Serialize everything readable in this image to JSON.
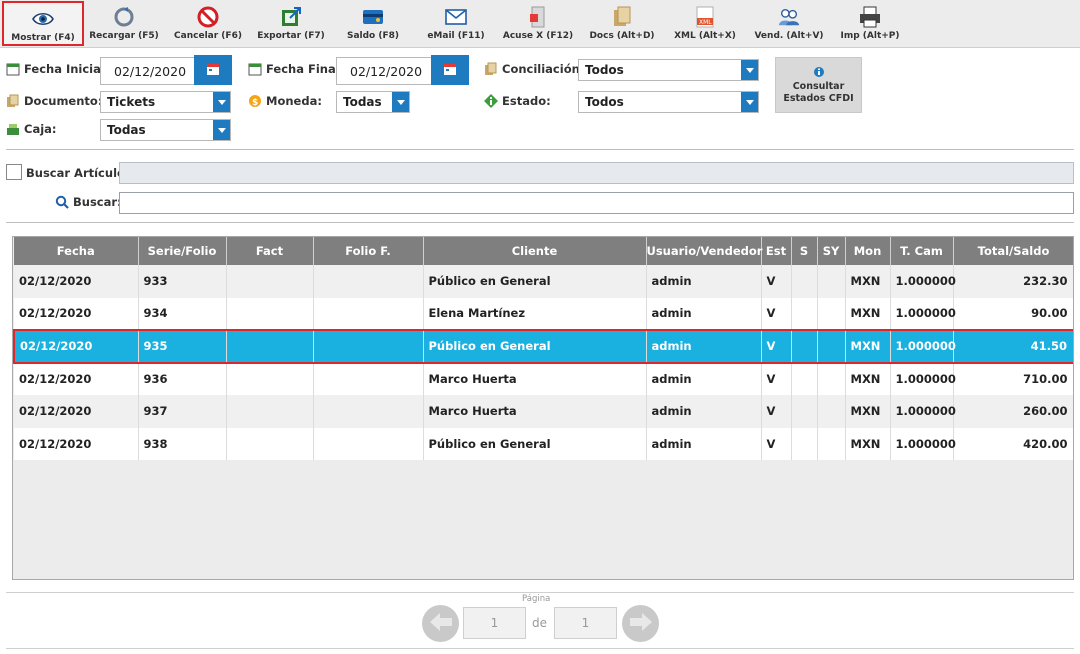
{
  "toolbar": {
    "buttons": [
      {
        "label": "Mostrar (F4)",
        "icon": "eye-icon"
      },
      {
        "label": "Recargar (F5)",
        "icon": "reload-icon"
      },
      {
        "label": "Cancelar (F6)",
        "icon": "cancel-icon"
      },
      {
        "label": "Exportar (F7)",
        "icon": "export-icon"
      },
      {
        "label": "Saldo (F8)",
        "icon": "card-icon"
      },
      {
        "label": "eMail (F11)",
        "icon": "envelope-icon"
      },
      {
        "label": "Acuse X (F12)",
        "icon": "receipt-icon"
      },
      {
        "label": "Docs (Alt+D)",
        "icon": "docs-icon"
      },
      {
        "label": "XML (Alt+X)",
        "icon": "xml-icon"
      },
      {
        "label": "Vend. (Alt+V)",
        "icon": "users-icon"
      },
      {
        "label": "Imp (Alt+P)",
        "icon": "printer-icon"
      }
    ]
  },
  "filters": {
    "fecha_inicial_label": "Fecha Inicial:",
    "fecha_inicial_value": "02/12/2020",
    "fecha_final_label": "Fecha Final:",
    "fecha_final_value": "02/12/2020",
    "conciliacion_label": "Conciliación:",
    "conciliacion_value": "Todos",
    "documento_label": "Documento:",
    "documento_value": "Tickets",
    "moneda_label": "Moneda:",
    "moneda_value": "Todas",
    "estado_label": "Estado:",
    "estado_value": "Todos",
    "caja_label": "Caja:",
    "caja_value": "Todas",
    "cfdi_button_line1": "Consultar",
    "cfdi_button_line2": "Estados CFDI"
  },
  "search": {
    "buscar_articulo_label": "Buscar Artículo:",
    "buscar_label": "Buscar:"
  },
  "table": {
    "headers": [
      "Fecha",
      "Serie/Folio",
      "Fact",
      "Folio F.",
      "Cliente",
      "Usuario/Vendedor",
      "Est",
      "S",
      "SY",
      "Mon",
      "T. Cam",
      "Total/Saldo"
    ],
    "rows": [
      [
        "02/12/2020",
        "933",
        "",
        "",
        "Público en General",
        "admin",
        "V",
        "",
        "",
        "MXN",
        "1.000000",
        "232.30"
      ],
      [
        "02/12/2020",
        "934",
        "",
        "",
        "Elena Martínez",
        "admin",
        "V",
        "",
        "",
        "MXN",
        "1.000000",
        "90.00"
      ],
      [
        "02/12/2020",
        "935",
        "",
        "",
        "Público en General",
        "admin",
        "V",
        "",
        "",
        "MXN",
        "1.000000",
        "41.50"
      ],
      [
        "02/12/2020",
        "936",
        "",
        "",
        "Marco Huerta",
        "admin",
        "V",
        "",
        "",
        "MXN",
        "1.000000",
        "710.00"
      ],
      [
        "02/12/2020",
        "937",
        "",
        "",
        "Marco Huerta",
        "admin",
        "V",
        "",
        "",
        "MXN",
        "1.000000",
        "260.00"
      ],
      [
        "02/12/2020",
        "938",
        "",
        "",
        "Público en General",
        "admin",
        "V",
        "",
        "",
        "MXN",
        "1.000000",
        "420.00"
      ]
    ],
    "selected_row": 2
  },
  "pager": {
    "label": "Página",
    "current": "1",
    "of_label": "de",
    "total": "1"
  },
  "colors": {
    "accent": "#1f7bc0",
    "selection": "#1ab0e0",
    "highlight_border": "#e0262b",
    "header_bg": "#7f7f7f"
  }
}
